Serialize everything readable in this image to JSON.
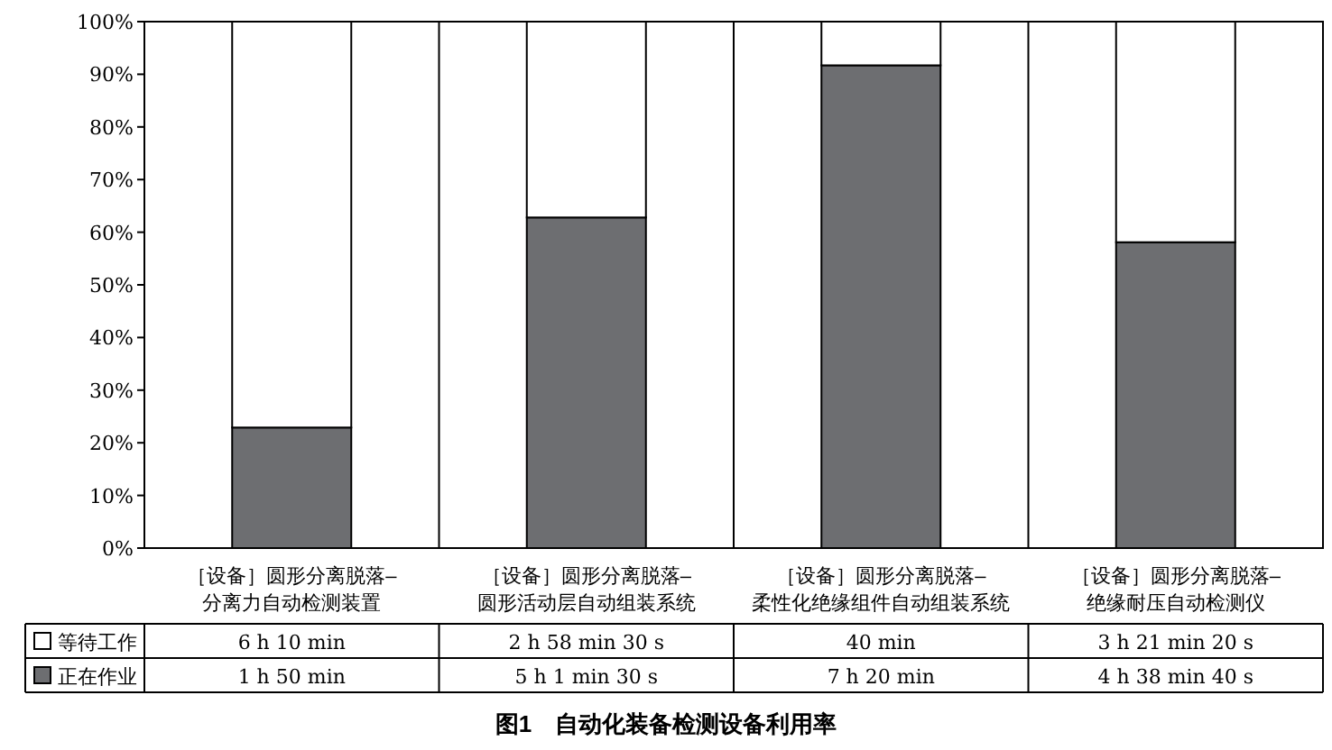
{
  "chart_data": {
    "type": "bar",
    "stacked": true,
    "title": "图1　自动化装备检测设备利用率",
    "categories": [
      "［设备］圆形分离脱落–\n分离力自动检测装置",
      "［设备］圆形分离脱落–\n圆形活动层自动组装系统",
      "［设备］圆形分离脱落–\n柔性化绝缘组件自动组装系统",
      "［设备］圆形分离脱落–\n绝缘耐压自动检测仪"
    ],
    "series": [
      {
        "name": "正在作业",
        "color": "#6d6e71",
        "values": [
          22.9,
          62.8,
          91.7,
          58.1
        ]
      },
      {
        "name": "等待工作",
        "color": "#ffffff",
        "values": [
          77.1,
          37.2,
          8.3,
          41.9
        ]
      }
    ],
    "annotations": [
      "6 h 10 min",
      "2 h 58 min 30 s",
      "40 min",
      "3 h 21 min 20 s",
      "1 h 50 min",
      "5 h 1 min 30 s",
      "7 h 20 min",
      "4 h 38 min 40 s"
    ],
    "ylim": [
      0,
      100
    ],
    "yticks": [
      {
        "value": 0,
        "label": "0%"
      },
      {
        "value": 10,
        "label": "10%"
      },
      {
        "value": 20,
        "label": "20%"
      },
      {
        "value": 30,
        "label": "30%"
      },
      {
        "value": 40,
        "label": "40%"
      },
      {
        "value": 50,
        "label": "50%"
      },
      {
        "value": 60,
        "label": "60%"
      },
      {
        "value": 70,
        "label": "70%"
      },
      {
        "value": 80,
        "label": "80%"
      },
      {
        "value": 90,
        "label": "90%"
      },
      {
        "value": 100,
        "label": "100%"
      }
    ],
    "legend": "bottom",
    "grid": false
  }
}
